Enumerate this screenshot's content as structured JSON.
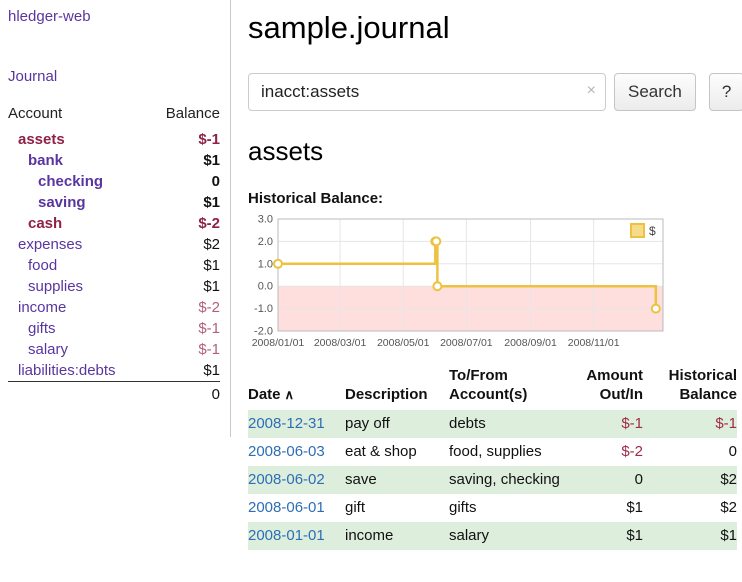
{
  "theme": {
    "link_purple": "#5a35a0",
    "negative_strong": "#8f2246",
    "negative_soft": "#b3607a",
    "table_negative": "#a12b45",
    "date_blue": "#2e6eb5",
    "row_shade_green": "#ddeedd",
    "chart_line_yellow": "#edc240",
    "chart_negative_pink": "#ffdede"
  },
  "sidebar": {
    "brand": "hledger-web",
    "journal_link": "Journal",
    "headers": {
      "account": "Account",
      "balance": "Balance"
    },
    "accounts": [
      {
        "name": "assets",
        "indent": 0,
        "balance": "$-1",
        "bold": true,
        "name_neg": true,
        "bal_neg": "strong"
      },
      {
        "name": "bank",
        "indent": 1,
        "balance": "$1",
        "bold": true,
        "name_neg": false,
        "bal_neg": "none"
      },
      {
        "name": "checking",
        "indent": 2,
        "balance": "0",
        "bold": true,
        "name_neg": false,
        "bal_neg": "none"
      },
      {
        "name": "saving",
        "indent": 2,
        "balance": "$1",
        "bold": true,
        "name_neg": false,
        "bal_neg": "none"
      },
      {
        "name": "cash",
        "indent": 1,
        "balance": "$-2",
        "bold": true,
        "name_neg": true,
        "bal_neg": "strong"
      },
      {
        "name": "expenses",
        "indent": 0,
        "balance": "$2",
        "bold": false,
        "name_neg": false,
        "bal_neg": "none"
      },
      {
        "name": "food",
        "indent": 1,
        "balance": "$1",
        "bold": false,
        "name_neg": false,
        "bal_neg": "none"
      },
      {
        "name": "supplies",
        "indent": 1,
        "balance": "$1",
        "bold": false,
        "name_neg": false,
        "bal_neg": "none"
      },
      {
        "name": "income",
        "indent": 0,
        "balance": "$-2",
        "bold": false,
        "name_neg": false,
        "bal_neg": "soft"
      },
      {
        "name": "gifts",
        "indent": 1,
        "balance": "$-1",
        "bold": false,
        "name_neg": false,
        "bal_neg": "soft"
      },
      {
        "name": "salary",
        "indent": 1,
        "balance": "$-1",
        "bold": false,
        "name_neg": false,
        "bal_neg": "soft"
      },
      {
        "name": "liabilities:debts",
        "indent": 0,
        "balance": "$1",
        "bold": false,
        "name_neg": false,
        "bal_neg": "none"
      }
    ],
    "total": "0"
  },
  "main": {
    "title": "sample.journal",
    "search": {
      "value": "inacct:assets",
      "clear_icon": "×",
      "button_label": "Search",
      "help_label": "?"
    },
    "account_heading": "assets",
    "chart_title": "Historical Balance:"
  },
  "chart_data": {
    "type": "line",
    "step": true,
    "title": "Historical Balance",
    "series": [
      {
        "name": "$",
        "color": "#edc240",
        "points": [
          {
            "date": "2008-01-01",
            "value": 1
          },
          {
            "date": "2008-06-01",
            "value": 2
          },
          {
            "date": "2008-06-02",
            "value": 2
          },
          {
            "date": "2008-06-03",
            "value": 0
          },
          {
            "date": "2008-12-31",
            "value": -1
          }
        ]
      }
    ],
    "x_ticks": [
      {
        "date": "2008-01-01",
        "label": "2008/01/01"
      },
      {
        "date": "2008-03-01",
        "label": "2008/03/01"
      },
      {
        "date": "2008-05-01",
        "label": "2008/05/01"
      },
      {
        "date": "2008-07-01",
        "label": "2008/07/01"
      },
      {
        "date": "2008-09-01",
        "label": "2008/09/01"
      },
      {
        "date": "2008-11-01",
        "label": "2008/11/01"
      }
    ],
    "y_ticks": [
      "3.0",
      "2.0",
      "1.0",
      "0.0",
      "-1.0",
      "-2.0"
    ],
    "ylim": [
      -2,
      3
    ],
    "xlim": [
      "2008-01-01",
      "2009-01-07"
    ],
    "grid": true,
    "negative_region": {
      "below": 0,
      "fill": "#ffdede"
    },
    "legend": {
      "label": "$",
      "position": "top-right"
    }
  },
  "register": {
    "headers": {
      "date": "Date",
      "sort_icon": "∧",
      "description": "Description",
      "accounts": "To/From\nAccount(s)",
      "amount": "Amount\nOut/In",
      "balance": "Historical\nBalance"
    },
    "rows": [
      {
        "date": "2008-12-31",
        "description": "pay off",
        "accounts": "debts",
        "amount": "$-1",
        "amount_neg": true,
        "balance": "$-1",
        "balance_neg": true,
        "shaded": true
      },
      {
        "date": "2008-06-03",
        "description": "eat & shop",
        "accounts": "food, supplies",
        "amount": "$-2",
        "amount_neg": true,
        "balance": "0",
        "balance_neg": false,
        "shaded": false
      },
      {
        "date": "2008-06-02",
        "description": "save",
        "accounts": "saving, checking",
        "amount": "0",
        "amount_neg": false,
        "balance": "$2",
        "balance_neg": false,
        "shaded": true
      },
      {
        "date": "2008-06-01",
        "description": "gift",
        "accounts": "gifts",
        "amount": "$1",
        "amount_neg": false,
        "balance": "$2",
        "balance_neg": false,
        "shaded": false
      },
      {
        "date": "2008-01-01",
        "description": "income",
        "accounts": "salary",
        "amount": "$1",
        "amount_neg": false,
        "balance": "$1",
        "balance_neg": false,
        "shaded": true
      }
    ]
  }
}
